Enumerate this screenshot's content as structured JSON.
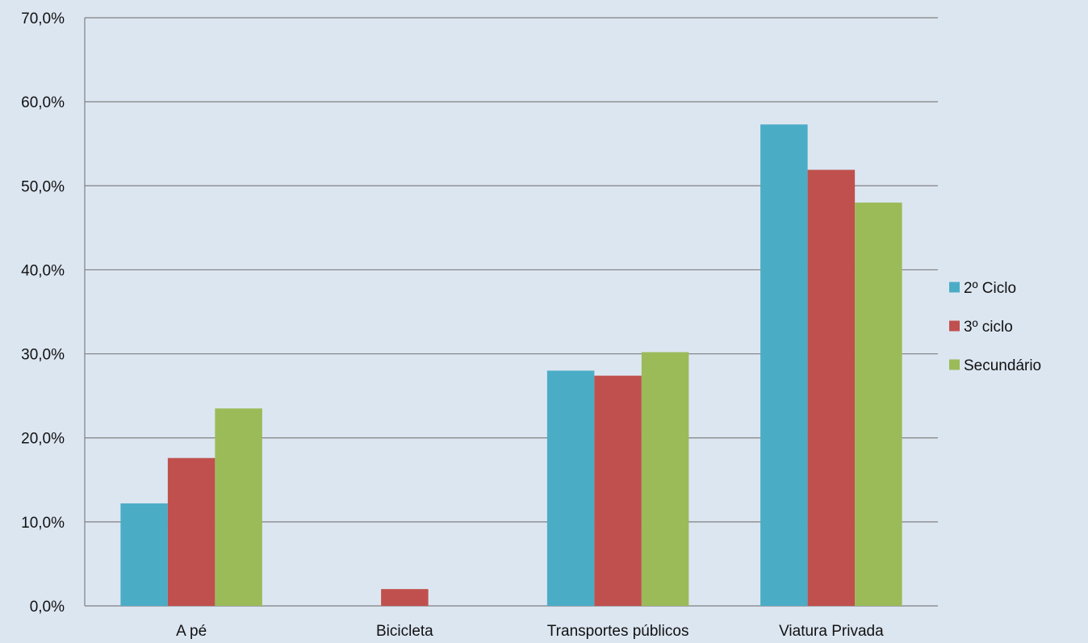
{
  "chart_data": {
    "type": "bar",
    "categories": [
      "A pé",
      "Bicicleta",
      "Transportes públicos",
      "Viatura Privada"
    ],
    "series": [
      {
        "name": "2º Ciclo",
        "color": "#4bacc6",
        "values": [
          12.2,
          0.0,
          28.0,
          57.3
        ]
      },
      {
        "name": "3º ciclo",
        "color": "#c0504d",
        "values": [
          17.6,
          2.0,
          27.4,
          51.9
        ]
      },
      {
        "name": "Secundário",
        "color": "#9bbb59",
        "values": [
          23.5,
          0.0,
          30.2,
          48.0
        ]
      }
    ],
    "ylim": [
      0,
      70
    ],
    "yticks": [
      "0,0%",
      "10,0%",
      "20,0%",
      "30,0%",
      "40,0%",
      "50,0%",
      "60,0%",
      "70,0%"
    ],
    "grid": true,
    "legend_position": "right",
    "background_color": "#dce6f1",
    "gridline_color": "#808080"
  }
}
